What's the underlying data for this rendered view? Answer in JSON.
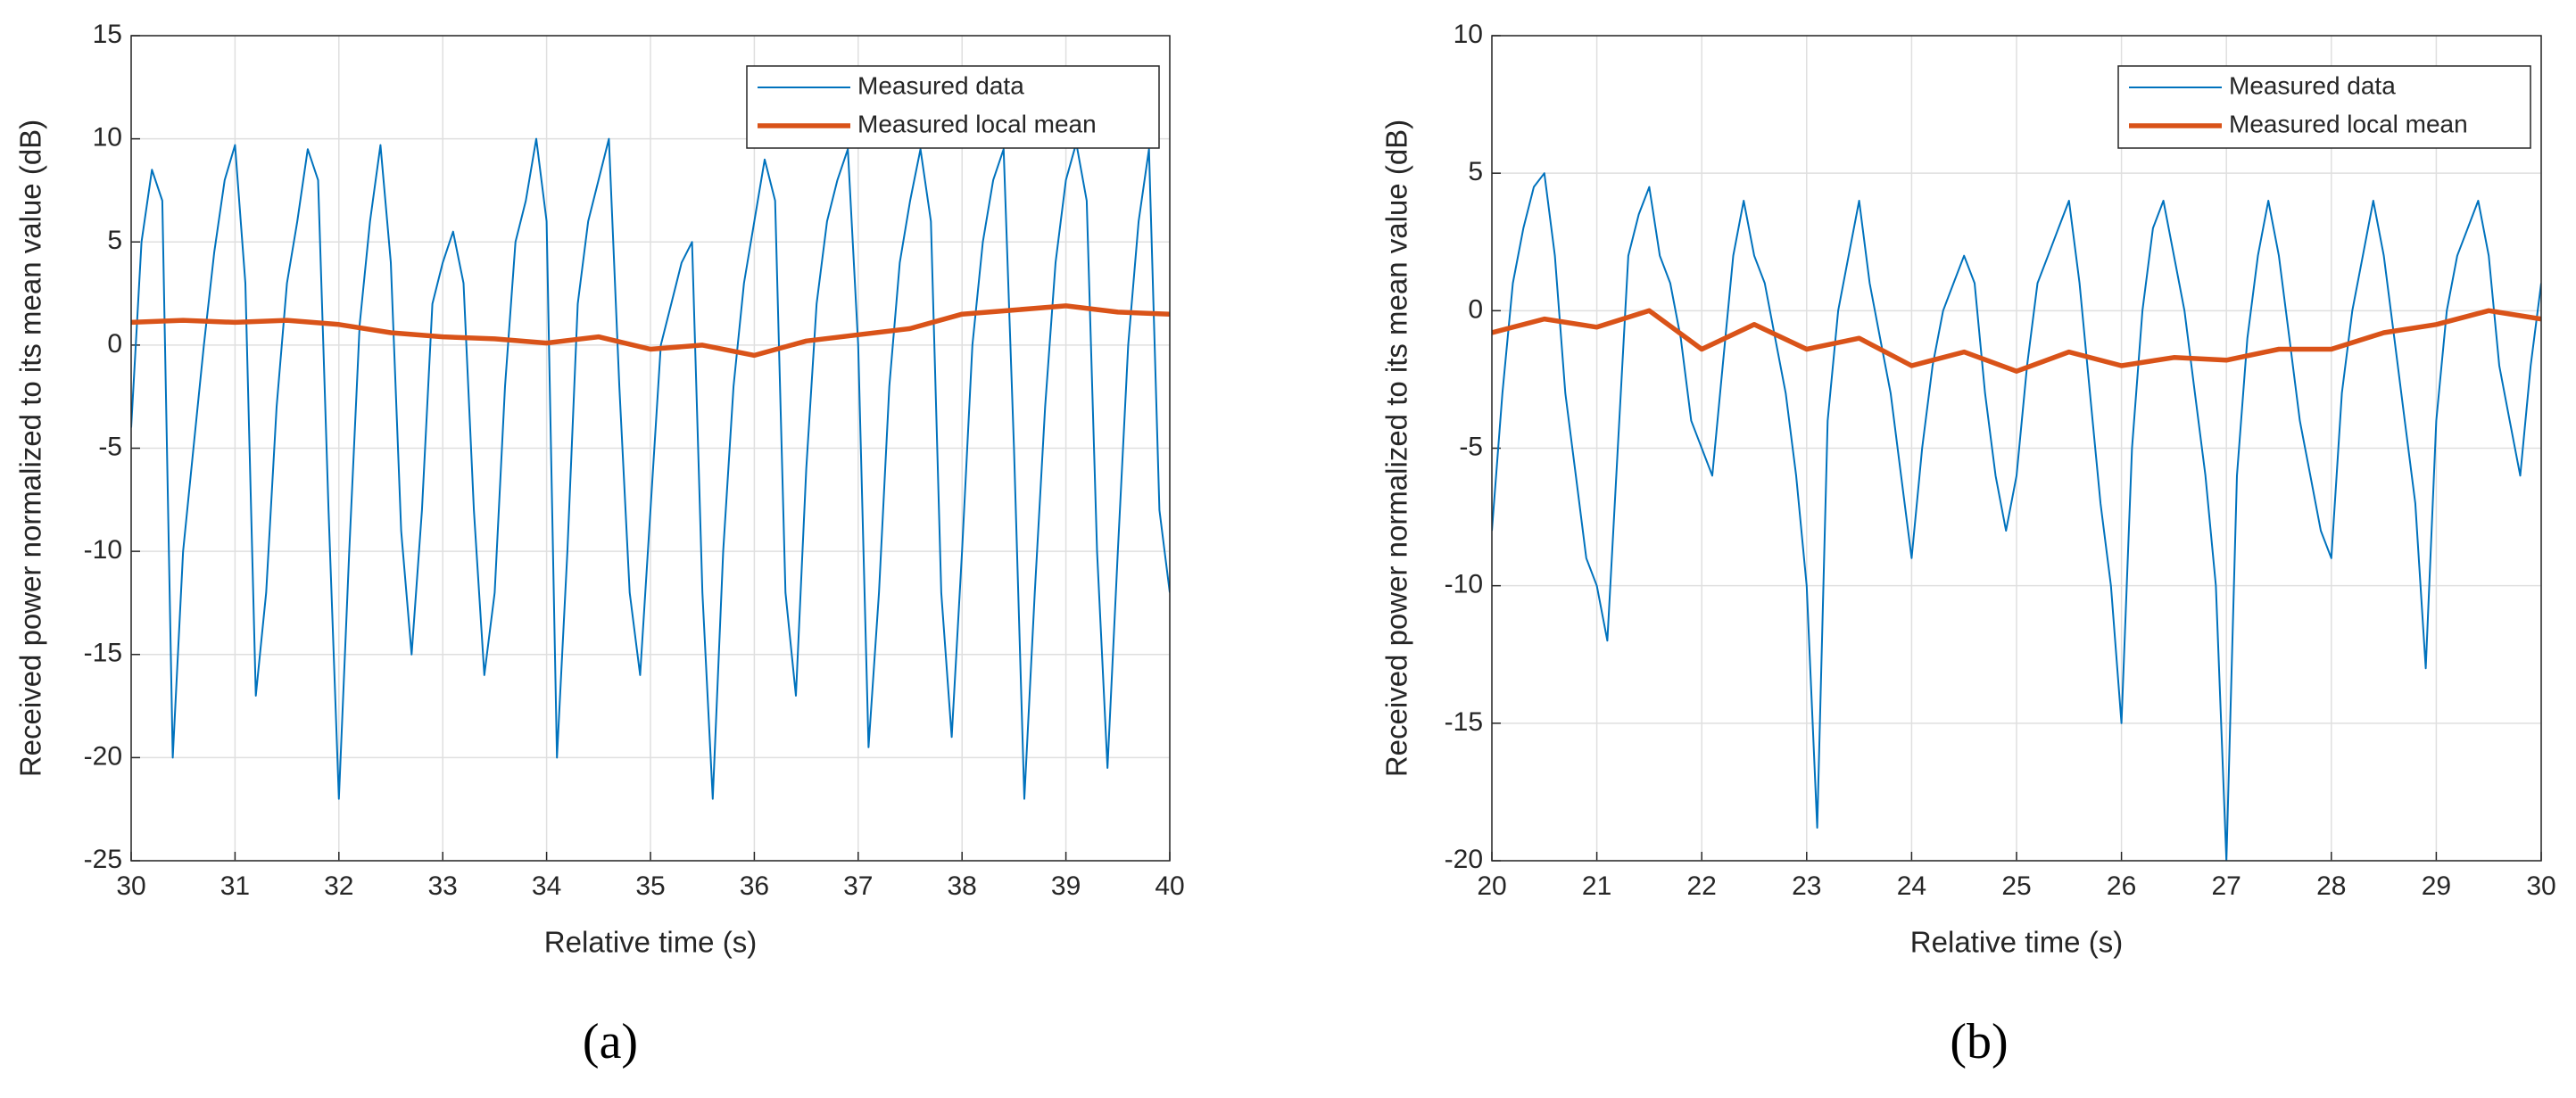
{
  "chart_data": [
    {
      "type": "line",
      "caption": "(a)",
      "xlabel": "Relative time (s)",
      "ylabel": "Received power normalized to its mean value (dB)",
      "xlim": [
        30,
        40
      ],
      "ylim": [
        -25,
        15
      ],
      "xticks": [
        30,
        31,
        32,
        33,
        34,
        35,
        36,
        37,
        38,
        39,
        40
      ],
      "yticks": [
        -25,
        -20,
        -15,
        -10,
        -5,
        0,
        5,
        10,
        15
      ],
      "grid": true,
      "legend": "northeast",
      "series": [
        {
          "name": "Measured data",
          "color": "#0072BD",
          "x": [
            30.0,
            30.1,
            30.2,
            30.3,
            30.4,
            30.5,
            30.6,
            30.7,
            30.8,
            30.9,
            31.0,
            31.1,
            31.2,
            31.3,
            31.4,
            31.5,
            31.6,
            31.7,
            31.8,
            31.9,
            32.0,
            32.1,
            32.2,
            32.3,
            32.4,
            32.5,
            32.6,
            32.7,
            32.8,
            32.9,
            33.0,
            33.1,
            33.2,
            33.3,
            33.4,
            33.5,
            33.6,
            33.7,
            33.8,
            33.9,
            34.0,
            34.1,
            34.2,
            34.3,
            34.4,
            34.5,
            34.6,
            34.7,
            34.8,
            34.9,
            35.0,
            35.1,
            35.2,
            35.3,
            35.4,
            35.5,
            35.6,
            35.7,
            35.8,
            35.9,
            36.0,
            36.1,
            36.2,
            36.3,
            36.4,
            36.5,
            36.6,
            36.7,
            36.8,
            36.9,
            37.0,
            37.1,
            37.2,
            37.3,
            37.4,
            37.5,
            37.6,
            37.7,
            37.8,
            37.9,
            38.0,
            38.1,
            38.2,
            38.3,
            38.4,
            38.5,
            38.6,
            38.7,
            38.8,
            38.9,
            39.0,
            39.1,
            39.2,
            39.3,
            39.4,
            39.5,
            39.6,
            39.7,
            39.8,
            39.9,
            40.0
          ],
          "values": [
            -4,
            5,
            8.5,
            7,
            -20,
            -10,
            -5,
            0,
            4.5,
            8,
            9.7,
            3,
            -17,
            -12,
            -3,
            3,
            6,
            9.5,
            8,
            -8,
            -22,
            -10,
            1,
            6,
            9.7,
            4,
            -9,
            -15,
            -8,
            2,
            4,
            5.5,
            3,
            -8,
            -16,
            -12,
            -2,
            5,
            7,
            10,
            6,
            -20,
            -10,
            2,
            6,
            8,
            10,
            -2,
            -12,
            -16,
            -8,
            0,
            2,
            4,
            5,
            -12,
            -22,
            -10,
            -2,
            3,
            6,
            9,
            7,
            -12,
            -17,
            -6,
            2,
            6,
            8,
            9.5,
            0,
            -19.5,
            -12,
            -2,
            4,
            7,
            9.5,
            6,
            -12,
            -19,
            -10,
            0,
            5,
            8,
            9.5,
            -5,
            -22,
            -12,
            -3,
            4,
            8,
            9.8,
            7,
            -10,
            -20.5,
            -10,
            0,
            6,
            9.5,
            -8,
            -12
          ]
        },
        {
          "name": "Measured local mean",
          "color": "#D95319",
          "x": [
            30,
            30.5,
            31,
            31.5,
            32,
            32.5,
            33,
            33.5,
            34,
            34.5,
            35,
            35.5,
            36,
            36.5,
            37,
            37.5,
            38,
            38.5,
            39,
            39.5,
            40
          ],
          "values": [
            1.1,
            1.2,
            1.1,
            1.2,
            1.0,
            0.6,
            0.4,
            0.3,
            0.1,
            0.4,
            -0.2,
            0,
            -0.5,
            0.2,
            0.5,
            0.8,
            1.5,
            1.7,
            1.9,
            1.6,
            1.5
          ]
        }
      ]
    },
    {
      "type": "line",
      "caption": "(b)",
      "xlabel": "Relative time (s)",
      "ylabel": "Received power normalized to its mean value (dB)",
      "xlim": [
        20,
        30
      ],
      "ylim": [
        -20,
        10
      ],
      "xticks": [
        20,
        21,
        22,
        23,
        24,
        25,
        26,
        27,
        28,
        29,
        30
      ],
      "yticks": [
        -20,
        -15,
        -10,
        -5,
        0,
        5,
        10
      ],
      "grid": true,
      "legend": "northeast",
      "series": [
        {
          "name": "Measured data",
          "color": "#0072BD",
          "x": [
            20.0,
            20.1,
            20.2,
            20.3,
            20.4,
            20.5,
            20.6,
            20.7,
            20.8,
            20.9,
            21.0,
            21.1,
            21.2,
            21.3,
            21.4,
            21.5,
            21.6,
            21.7,
            21.8,
            21.9,
            22.0,
            22.1,
            22.2,
            22.3,
            22.4,
            22.5,
            22.6,
            22.7,
            22.8,
            22.9,
            23.0,
            23.1,
            23.2,
            23.3,
            23.4,
            23.5,
            23.6,
            23.7,
            23.8,
            23.9,
            24.0,
            24.1,
            24.2,
            24.3,
            24.4,
            24.5,
            24.6,
            24.7,
            24.8,
            24.9,
            25.0,
            25.1,
            25.2,
            25.3,
            25.4,
            25.5,
            25.6,
            25.7,
            25.8,
            25.9,
            26.0,
            26.1,
            26.2,
            26.3,
            26.4,
            26.5,
            26.6,
            26.7,
            26.8,
            26.9,
            27.0,
            27.1,
            27.2,
            27.3,
            27.4,
            27.5,
            27.6,
            27.7,
            27.8,
            27.9,
            28.0,
            28.1,
            28.2,
            28.3,
            28.4,
            28.5,
            28.6,
            28.7,
            28.8,
            28.9,
            29.0,
            29.1,
            29.2,
            29.3,
            29.4,
            29.5,
            29.6,
            29.7,
            29.8,
            29.9,
            30.0
          ],
          "values": [
            -8,
            -3,
            1,
            3,
            4.5,
            5,
            2,
            -3,
            -6,
            -9,
            -10,
            -12,
            -5,
            2,
            3.5,
            4.5,
            2,
            1,
            -1,
            -4,
            -5,
            -6,
            -2,
            2,
            4,
            2,
            1,
            -1,
            -3,
            -6,
            -10,
            -18.8,
            -4,
            0,
            2,
            4,
            1,
            -1,
            -3,
            -6,
            -9,
            -5,
            -2,
            0,
            1,
            2,
            1,
            -3,
            -6,
            -8,
            -6,
            -2,
            1,
            2,
            3,
            4,
            1,
            -3,
            -7,
            -10,
            -15,
            -5,
            0,
            3,
            4,
            2,
            0,
            -3,
            -6,
            -10,
            -20,
            -6,
            -1,
            2,
            4,
            2,
            -1,
            -4,
            -6,
            -8,
            -9,
            -3,
            0,
            2,
            4,
            2,
            -1,
            -4,
            -7,
            -13,
            -4,
            0,
            2,
            3,
            4,
            2,
            -2,
            -4,
            -6,
            -2,
            1
          ]
        },
        {
          "name": "Measured local mean",
          "color": "#D95319",
          "x": [
            20,
            20.5,
            21,
            21.5,
            22,
            22.5,
            23,
            23.5,
            24,
            24.5,
            25,
            25.5,
            26,
            26.5,
            27,
            27.5,
            28,
            28.5,
            29,
            29.5,
            30
          ],
          "values": [
            -0.8,
            -0.3,
            -0.6,
            0,
            -1.4,
            -0.5,
            -1.4,
            -1.0,
            -2.0,
            -1.5,
            -2.2,
            -1.5,
            -2.0,
            -1.7,
            -1.8,
            -1.4,
            -1.4,
            -0.8,
            -0.5,
            0,
            -0.3
          ]
        }
      ]
    }
  ]
}
